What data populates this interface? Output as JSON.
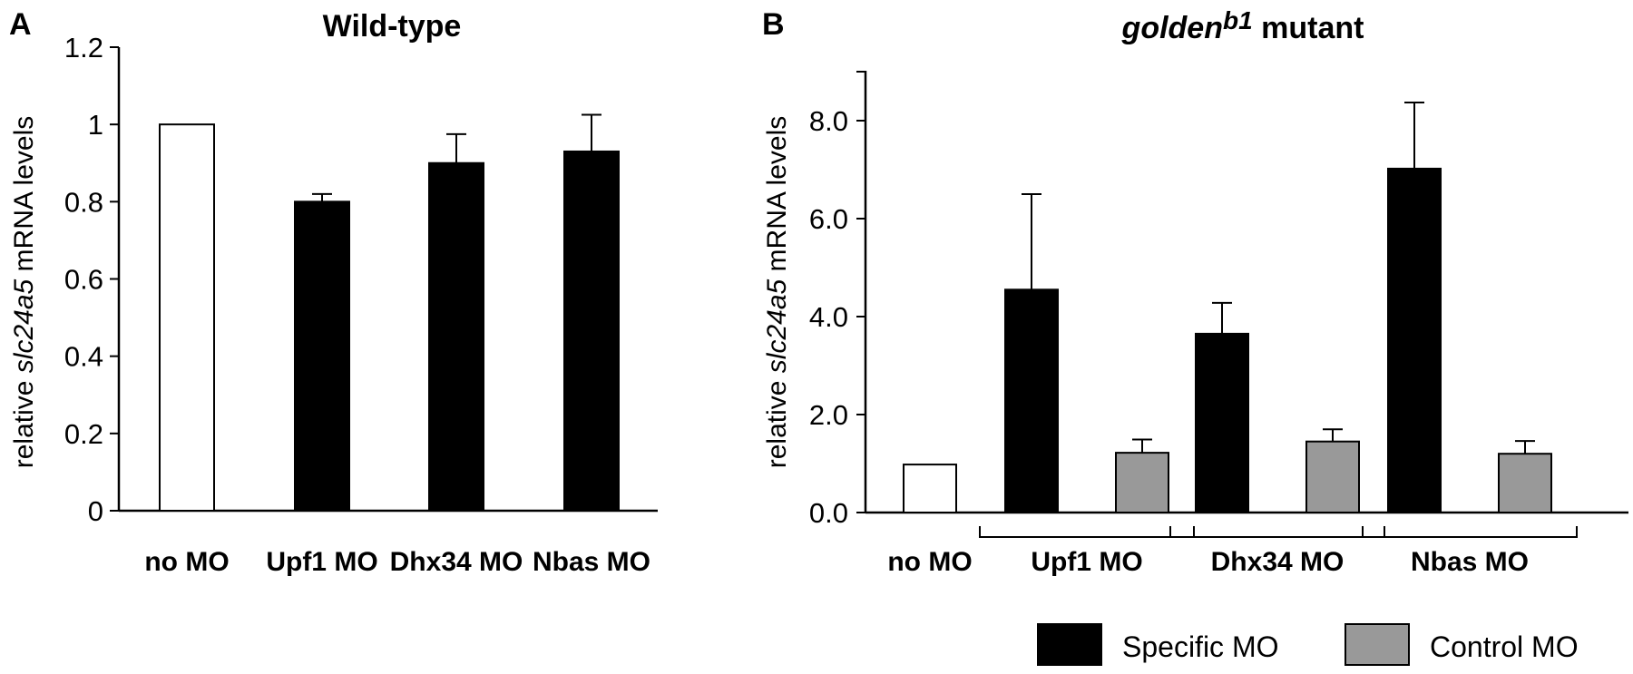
{
  "chart_data": [
    {
      "type": "bar",
      "panel": "A",
      "title": "Wild-type",
      "ylabel": {
        "pre": "relative ",
        "gene": "slc24a5",
        "post": " mRNA levels"
      },
      "ylim": [
        0,
        1.2
      ],
      "yticks": [
        0,
        0.2,
        0.4,
        0.6,
        0.8,
        1,
        1.2
      ],
      "ytick_labels": [
        "0",
        "0.2",
        "0.4",
        "0.6",
        "0.8",
        "1",
        "1.2"
      ],
      "categories": [
        "no MO",
        "Upf1 MO",
        "Dhx34 MO",
        "Nbas MO"
      ],
      "values": [
        1.0,
        0.8,
        0.9,
        0.93
      ],
      "errors": [
        0,
        0.02,
        0.075,
        0.095
      ],
      "colors": [
        "#ffffff",
        "#000000",
        "#000000",
        "#000000"
      ]
    },
    {
      "type": "bar",
      "panel": "B",
      "title": {
        "gene": "golden",
        "allele": "b1",
        "rest": " mutant"
      },
      "ylabel": {
        "pre": "relative ",
        "gene": "slc24a5",
        "post": " mRNA levels"
      },
      "ylim": [
        0,
        9
      ],
      "yticks": [
        0,
        2,
        4,
        6,
        8
      ],
      "ytick_labels": [
        "0.0",
        "2.0",
        "4.0",
        "6.0",
        "8.0"
      ],
      "categories": [
        "no MO",
        "Upf1 MO",
        "Dhx34 MO",
        "Nbas MO"
      ],
      "series": [
        {
          "name": "Specific MO",
          "color": "#000000",
          "values": [
            null,
            4.55,
            3.65,
            7.02
          ],
          "errors": [
            null,
            1.95,
            0.63,
            1.35
          ]
        },
        {
          "name": "Control MO",
          "color": "#999999",
          "values": [
            null,
            1.22,
            1.45,
            1.2
          ],
          "errors": [
            null,
            0.27,
            0.25,
            0.26
          ]
        }
      ],
      "baseline": {
        "category": "no MO",
        "value": 0.98,
        "color": "#ffffff"
      },
      "legend": "bottom-right"
    }
  ]
}
